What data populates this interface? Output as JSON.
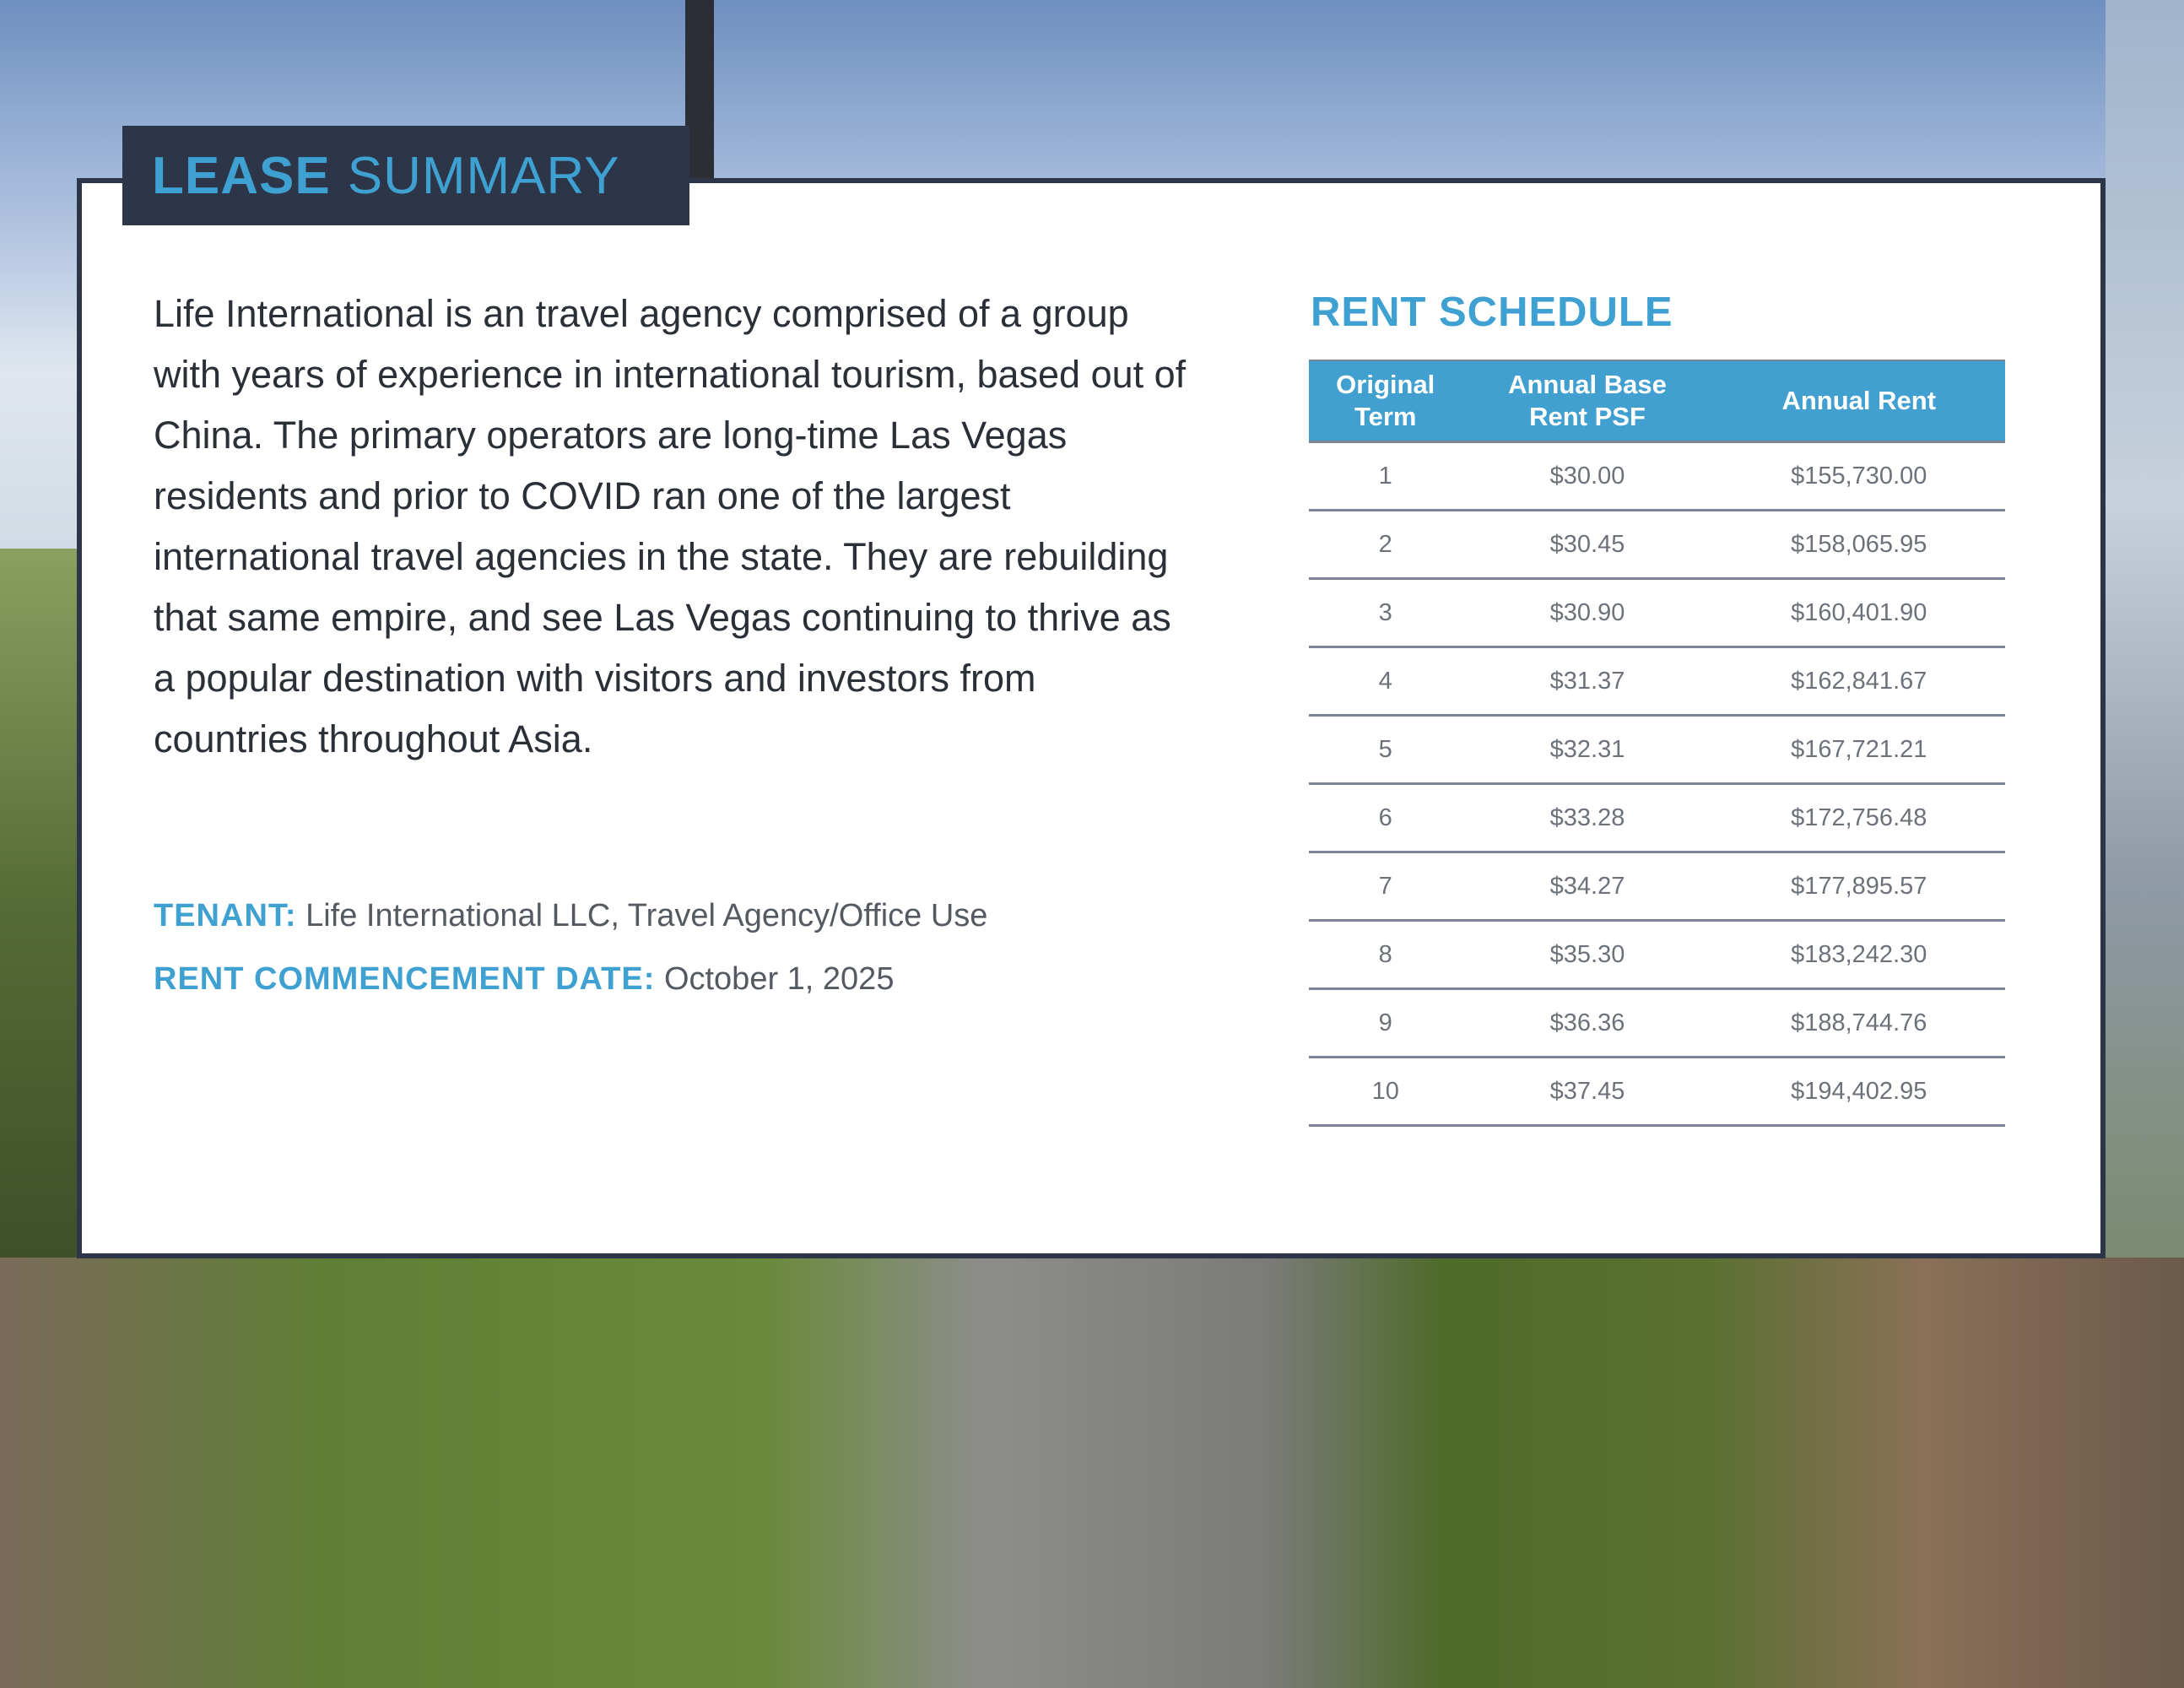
{
  "title": {
    "bold": "LEASE",
    "light": "SUMMARY"
  },
  "description": "Life International is an travel agency comprised of a group with years of experience in international tourism, based out of China. The primary operators are long-time Las Vegas residents and prior to COVID ran one of the largest international travel agencies in the state. They are rebuilding that same empire, and see Las Vegas continuing to thrive as a popular destination with visitors and investors from countries throughout Asia.",
  "tenant": {
    "label": "TENANT:",
    "value": "Life International LLC, Travel Agency/Office Use"
  },
  "commencement": {
    "label": "RENT COMMENCEMENT DATE:",
    "value": "October 1, 2025"
  },
  "rent_schedule": {
    "title": "RENT SCHEDULE",
    "headers": [
      "Original Term",
      "Annual Base Rent PSF",
      "Annual Rent"
    ],
    "rows": [
      [
        "1",
        "$30.00",
        "$155,730.00"
      ],
      [
        "2",
        "$30.45",
        "$158,065.95"
      ],
      [
        "3",
        "$30.90",
        "$160,401.90"
      ],
      [
        "4",
        "$31.37",
        "$162,841.67"
      ],
      [
        "5",
        "$32.31",
        "$167,721.21"
      ],
      [
        "6",
        "$33.28",
        "$172,756.48"
      ],
      [
        "7",
        "$34.27",
        "$177,895.57"
      ],
      [
        "8",
        "$35.30",
        "$183,242.30"
      ],
      [
        "9",
        "$36.36",
        "$188,744.76"
      ],
      [
        "10",
        "$37.45",
        "$194,402.95"
      ]
    ]
  },
  "colors": {
    "accent": "#3fa0d2",
    "navy": "#2d3649"
  }
}
